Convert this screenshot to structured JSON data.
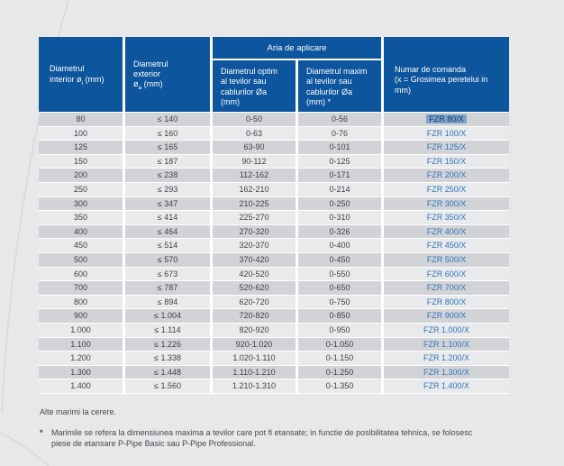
{
  "colors": {
    "page_bg": "#e7e8ea",
    "header_blue": "#0d559d",
    "row_dark": "#d2d3d7",
    "row_light": "#e9eaec",
    "cell_text": "#3e4144",
    "order_code_blue": "#2d74ba",
    "selection_bg": "#7da2c9",
    "selection_text": "#17356a",
    "footer_text": "#45484b",
    "swoosh_line": "#d9dbde"
  },
  "table": {
    "header": {
      "col_interior": {
        "line1": "Diametrul",
        "line2_pre": "interior ø",
        "line2_sub": "i",
        "line2_post": " (mm)"
      },
      "col_exterior": {
        "line1": "Diametrul",
        "line2": "exterior",
        "line3_pre": "ø",
        "line3_sub": "a",
        "line3_post": " (mm)"
      },
      "aria_banner": "Aria de aplicare",
      "col_optim": "Diametrul optim\nal tevilor sau\ncablurilor Øa\n(mm)",
      "col_maxim": "Diametrul maxim\nal tevilor sau\ncablurilor Øa\n(mm) *",
      "col_comanda": "Numar de comanda\n(x = Grosimea peretelui in\nmm)"
    },
    "rows": [
      {
        "interior": "80",
        "exterior": "≤ 140",
        "optim": "0-50",
        "maxim": "0-56",
        "comanda": "FZR 80/X",
        "selected": true
      },
      {
        "interior": "100",
        "exterior": "≤ 160",
        "optim": "0-63",
        "maxim": "0-76",
        "comanda": "FZR 100/X",
        "selected": false
      },
      {
        "interior": "125",
        "exterior": "≤ 165",
        "optim": "63-90",
        "maxim": "0-101",
        "comanda": "FZR 125/X",
        "selected": false
      },
      {
        "interior": "150",
        "exterior": "≤ 187",
        "optim": "90-112",
        "maxim": "0-125",
        "comanda": "FZR 150/X",
        "selected": false
      },
      {
        "interior": "200",
        "exterior": "≤ 238",
        "optim": "112-162",
        "maxim": "0-171",
        "comanda": "FZR 200/X",
        "selected": false
      },
      {
        "interior": "250",
        "exterior": "≤ 293",
        "optim": "162-210",
        "maxim": "0-214",
        "comanda": "FZR 250/X",
        "selected": false
      },
      {
        "interior": "300",
        "exterior": "≤ 347",
        "optim": "210-225",
        "maxim": "0-250",
        "comanda": "FZR 300/X",
        "selected": false
      },
      {
        "interior": "350",
        "exterior": "≤ 414",
        "optim": "225-270",
        "maxim": "0-310",
        "comanda": "FZR 350/X",
        "selected": false
      },
      {
        "interior": "400",
        "exterior": "≤ 464",
        "optim": "270-320",
        "maxim": "0-326",
        "comanda": "FZR 400/X",
        "selected": false
      },
      {
        "interior": "450",
        "exterior": "≤ 514",
        "optim": "320-370",
        "maxim": "0-400",
        "comanda": "FZR 450/X",
        "selected": false
      },
      {
        "interior": "500",
        "exterior": "≤ 570",
        "optim": "370-420",
        "maxim": "0-450",
        "comanda": "FZR 500/X",
        "selected": false
      },
      {
        "interior": "600",
        "exterior": "≤ 673",
        "optim": "420-520",
        "maxim": "0-550",
        "comanda": "FZR 600/X",
        "selected": false
      },
      {
        "interior": "700",
        "exterior": "≤ 787",
        "optim": "520-620",
        "maxim": "0-650",
        "comanda": "FZR 700/X",
        "selected": false
      },
      {
        "interior": "800",
        "exterior": "≤ 894",
        "optim": "620-720",
        "maxim": "0-750",
        "comanda": "FZR 800/X",
        "selected": false
      },
      {
        "interior": "900",
        "exterior": "≤ 1.004",
        "optim": "720-820",
        "maxim": "0-850",
        "comanda": "FZR 900/X",
        "selected": false
      },
      {
        "interior": "1.000",
        "exterior": "≤ 1.114",
        "optim": "820-920",
        "maxim": "0-950",
        "comanda": "FZR 1.000/X",
        "selected": false
      },
      {
        "interior": "1.100",
        "exterior": "≤ 1.226",
        "optim": "920-1.020",
        "maxim": "0-1.050",
        "comanda": "FZR 1.100/X",
        "selected": false
      },
      {
        "interior": "1.200",
        "exterior": "≤ 1.338",
        "optim": "1.020-1.110",
        "maxim": "0-1.150",
        "comanda": "FZR 1.200/X",
        "selected": false
      },
      {
        "interior": "1.300",
        "exterior": "≤ 1.448",
        "optim": "1.110-1.210",
        "maxim": "0-1.250",
        "comanda": "FZR 1.300/X",
        "selected": false
      },
      {
        "interior": "1.400",
        "exterior": "≤ 1.560",
        "optim": "1.210-1.310",
        "maxim": "0-1.350",
        "comanda": "FZR 1.400/X",
        "selected": false
      }
    ]
  },
  "footer": {
    "alte_marimi": "Alte marimi la cerere.",
    "footnote_marker": "*",
    "footnote_text": "Marimile se refera la dimensiunea maxima a tevilor care pot fi etansate; in functie de posibilitatea tehnica, se folosesc\npiese de etansare P-Pipe Basic sau P-Pipe Professional."
  }
}
